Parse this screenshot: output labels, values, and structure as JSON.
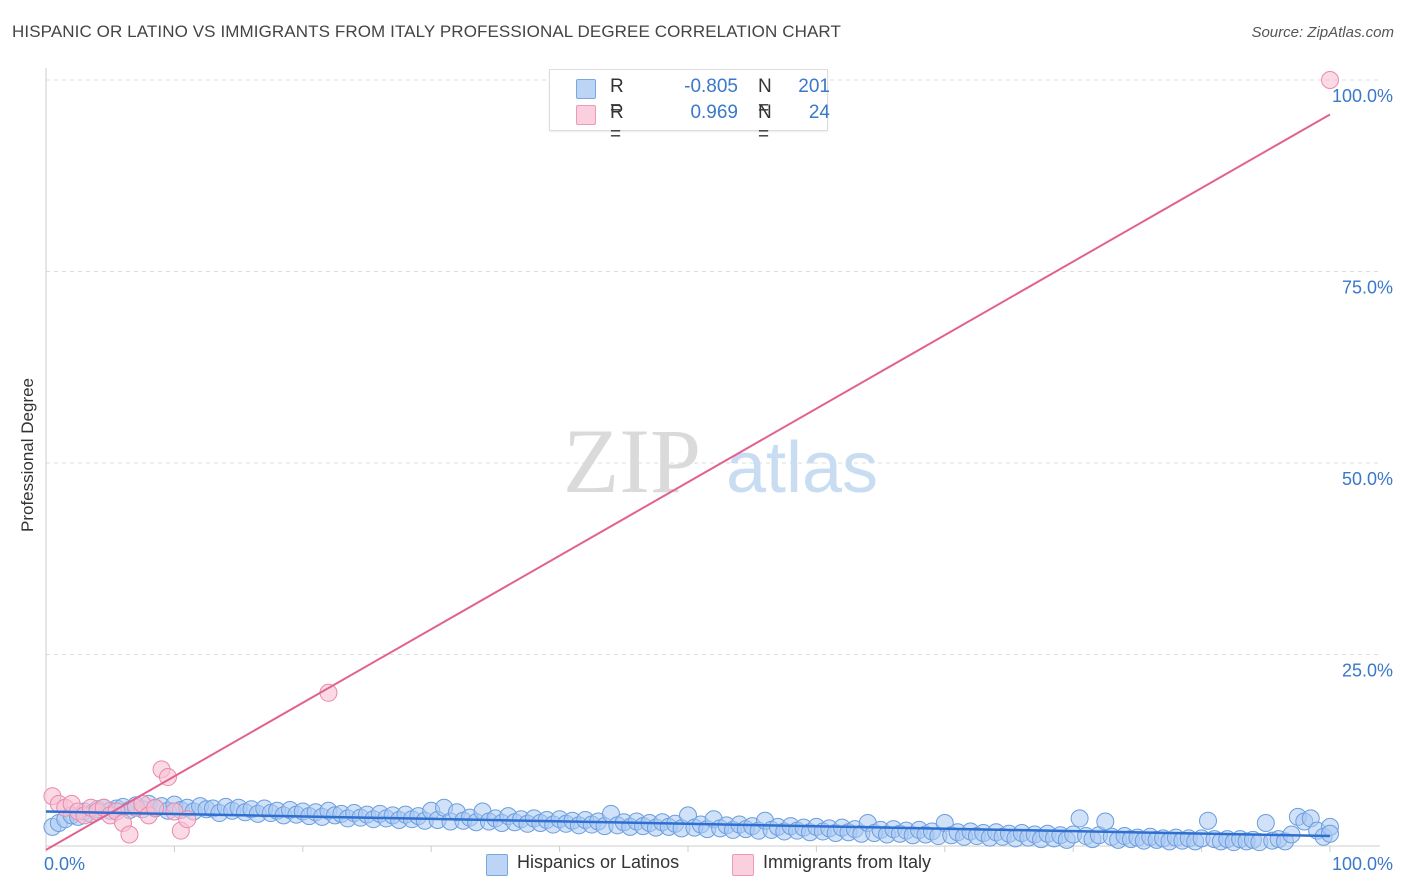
{
  "header": {
    "title": "HISPANIC OR LATINO VS IMMIGRANTS FROM ITALY PROFESSIONAL DEGREE CORRELATION CHART",
    "source": "Source: ZipAtlas.com"
  },
  "watermark": {
    "zip": "ZIP",
    "atlas": "atlas"
  },
  "legend": {
    "rows": [
      {
        "r_label": "R =",
        "r_value": "-0.805",
        "n_label": "N =",
        "n_value": "201",
        "color": "#8fb8ec"
      },
      {
        "r_label": "R =",
        "r_value": "0.969",
        "n_label": "N =",
        "n_value": "24",
        "color": "#f4a6bf"
      }
    ]
  },
  "bottom_legend": [
    {
      "label": "Hispanics or Latinos",
      "color": "#8fb8ec"
    },
    {
      "label": "Immigrants from Italy",
      "color": "#f4a6bf"
    }
  ],
  "colors": {
    "blue_fill": "#a9c9f2",
    "blue_stroke": "#6a9edf",
    "blue_line": "#2f6fd0",
    "pink_fill": "#f8c2d4",
    "pink_stroke": "#ea8aab",
    "pink_line": "#e2628f",
    "axis_text": "#3a78c9",
    "grid": "#dddddd"
  },
  "chart_data": {
    "type": "scatter",
    "title": "HISPANIC OR LATINO VS IMMIGRANTS FROM ITALY PROFESSIONAL DEGREE CORRELATION CHART",
    "xlabel": "",
    "ylabel": "Professional Degree",
    "xlim": [
      0,
      100
    ],
    "ylim": [
      0,
      100
    ],
    "x_tick_labels": [
      "0.0%",
      "100.0%"
    ],
    "y_ticks": [
      {
        "value": 25,
        "label": "25.0%"
      },
      {
        "value": 50,
        "label": "50.0%"
      },
      {
        "value": 75,
        "label": "75.0%"
      },
      {
        "value": 100,
        "label": "100.0%"
      }
    ],
    "grid": true,
    "legend_position": "top-center",
    "series": [
      {
        "name": "Hispanics or Latinos",
        "r": -0.805,
        "n": 201,
        "trend": {
          "x": [
            0,
            100
          ],
          "y": [
            4.5,
            1.3
          ]
        },
        "points": [
          [
            0.5,
            2.5
          ],
          [
            1,
            3.0
          ],
          [
            1.5,
            3.5
          ],
          [
            2,
            4.0
          ],
          [
            2.5,
            3.8
          ],
          [
            3,
            4.5
          ],
          [
            3.5,
            4.2
          ],
          [
            4,
            4.8
          ],
          [
            4.5,
            5.0
          ],
          [
            5,
            4.6
          ],
          [
            5.5,
            4.9
          ],
          [
            6,
            5.1
          ],
          [
            6.5,
            4.7
          ],
          [
            7,
            5.3
          ],
          [
            7.5,
            4.8
          ],
          [
            8,
            5.5
          ],
          [
            8.5,
            4.9
          ],
          [
            9,
            5.2
          ],
          [
            9.5,
            4.6
          ],
          [
            10,
            5.4
          ],
          [
            10.5,
            4.7
          ],
          [
            11,
            5.0
          ],
          [
            11.5,
            4.5
          ],
          [
            12,
            5.2
          ],
          [
            12.5,
            4.8
          ],
          [
            13,
            4.9
          ],
          [
            13.5,
            4.3
          ],
          [
            14,
            5.1
          ],
          [
            14.5,
            4.6
          ],
          [
            15,
            5.0
          ],
          [
            15.5,
            4.4
          ],
          [
            16,
            4.8
          ],
          [
            16.5,
            4.2
          ],
          [
            17,
            4.9
          ],
          [
            17.5,
            4.3
          ],
          [
            18,
            4.6
          ],
          [
            18.5,
            4.0
          ],
          [
            19,
            4.7
          ],
          [
            19.5,
            4.1
          ],
          [
            20,
            4.5
          ],
          [
            20.5,
            3.9
          ],
          [
            21,
            4.4
          ],
          [
            21.5,
            3.8
          ],
          [
            22,
            4.6
          ],
          [
            22.5,
            4.0
          ],
          [
            23,
            4.2
          ],
          [
            23.5,
            3.6
          ],
          [
            24,
            4.3
          ],
          [
            24.5,
            3.7
          ],
          [
            25,
            4.1
          ],
          [
            25.5,
            3.5
          ],
          [
            26,
            4.2
          ],
          [
            26.5,
            3.6
          ],
          [
            27,
            4.0
          ],
          [
            27.5,
            3.4
          ],
          [
            28,
            4.1
          ],
          [
            28.5,
            3.5
          ],
          [
            29,
            3.9
          ],
          [
            29.5,
            3.3
          ],
          [
            30,
            4.6
          ],
          [
            30.5,
            3.4
          ],
          [
            31,
            5.0
          ],
          [
            31.5,
            3.2
          ],
          [
            32,
            4.4
          ],
          [
            32.5,
            3.3
          ],
          [
            33,
            3.7
          ],
          [
            33.5,
            3.1
          ],
          [
            34,
            4.5
          ],
          [
            34.5,
            3.2
          ],
          [
            35,
            3.6
          ],
          [
            35.5,
            3.0
          ],
          [
            36,
            3.9
          ],
          [
            36.5,
            3.1
          ],
          [
            37,
            3.5
          ],
          [
            37.5,
            2.9
          ],
          [
            38,
            3.6
          ],
          [
            38.5,
            3.0
          ],
          [
            39,
            3.4
          ],
          [
            39.5,
            2.8
          ],
          [
            40,
            3.5
          ],
          [
            40.5,
            2.9
          ],
          [
            41,
            3.3
          ],
          [
            41.5,
            2.7
          ],
          [
            42,
            3.4
          ],
          [
            42.5,
            2.8
          ],
          [
            43,
            3.2
          ],
          [
            43.5,
            2.6
          ],
          [
            44,
            4.2
          ],
          [
            44.5,
            2.7
          ],
          [
            45,
            3.1
          ],
          [
            45.5,
            2.5
          ],
          [
            46,
            3.2
          ],
          [
            46.5,
            2.6
          ],
          [
            47,
            3.0
          ],
          [
            47.5,
            2.4
          ],
          [
            48,
            3.1
          ],
          [
            48.5,
            2.5
          ],
          [
            49,
            2.9
          ],
          [
            49.5,
            2.3
          ],
          [
            50,
            4.0
          ],
          [
            50.5,
            2.4
          ],
          [
            51,
            2.8
          ],
          [
            51.5,
            2.2
          ],
          [
            52,
            3.5
          ],
          [
            52.5,
            2.3
          ],
          [
            53,
            2.7
          ],
          [
            53.5,
            2.1
          ],
          [
            54,
            2.8
          ],
          [
            54.5,
            2.2
          ],
          [
            55,
            2.6
          ],
          [
            55.5,
            2.0
          ],
          [
            56,
            3.3
          ],
          [
            56.5,
            2.1
          ],
          [
            57,
            2.5
          ],
          [
            57.5,
            1.9
          ],
          [
            58,
            2.6
          ],
          [
            58.5,
            2.0
          ],
          [
            59,
            2.4
          ],
          [
            59.5,
            1.8
          ],
          [
            60,
            2.5
          ],
          [
            60.5,
            1.9
          ],
          [
            61,
            2.3
          ],
          [
            61.5,
            1.7
          ],
          [
            62,
            2.4
          ],
          [
            62.5,
            1.8
          ],
          [
            63,
            2.2
          ],
          [
            63.5,
            1.6
          ],
          [
            64,
            3.0
          ],
          [
            64.5,
            1.7
          ],
          [
            65,
            2.1
          ],
          [
            65.5,
            1.5
          ],
          [
            66,
            2.2
          ],
          [
            66.5,
            1.6
          ],
          [
            67,
            2.0
          ],
          [
            67.5,
            1.4
          ],
          [
            68,
            2.1
          ],
          [
            68.5,
            1.5
          ],
          [
            69,
            1.9
          ],
          [
            69.5,
            1.3
          ],
          [
            70,
            3.0
          ],
          [
            70.5,
            1.4
          ],
          [
            71,
            1.8
          ],
          [
            71.5,
            1.2
          ],
          [
            72,
            1.9
          ],
          [
            72.5,
            1.3
          ],
          [
            73,
            1.7
          ],
          [
            73.5,
            1.1
          ],
          [
            74,
            1.8
          ],
          [
            74.5,
            1.2
          ],
          [
            75,
            1.6
          ],
          [
            75.5,
            1.0
          ],
          [
            76,
            1.7
          ],
          [
            76.5,
            1.1
          ],
          [
            77,
            1.5
          ],
          [
            77.5,
            0.9
          ],
          [
            78,
            1.6
          ],
          [
            78.5,
            1.0
          ],
          [
            79,
            1.4
          ],
          [
            79.5,
            0.8
          ],
          [
            80,
            1.5
          ],
          [
            80.5,
            3.6
          ],
          [
            81,
            1.3
          ],
          [
            81.5,
            0.9
          ],
          [
            82,
            1.4
          ],
          [
            82.5,
            3.2
          ],
          [
            83,
            1.2
          ],
          [
            83.5,
            0.8
          ],
          [
            84,
            1.3
          ],
          [
            84.5,
            0.9
          ],
          [
            85,
            1.1
          ],
          [
            85.5,
            0.7
          ],
          [
            86,
            1.2
          ],
          [
            86.5,
            0.8
          ],
          [
            87,
            1.0
          ],
          [
            87.5,
            0.6
          ],
          [
            88,
            1.1
          ],
          [
            88.5,
            0.7
          ],
          [
            89,
            1.0
          ],
          [
            89.5,
            0.6
          ],
          [
            90,
            1.0
          ],
          [
            90.5,
            3.3
          ],
          [
            91,
            0.9
          ],
          [
            91.5,
            0.6
          ],
          [
            92,
            0.9
          ],
          [
            92.5,
            0.5
          ],
          [
            93,
            0.9
          ],
          [
            93.5,
            0.6
          ],
          [
            94,
            0.8
          ],
          [
            94.5,
            0.5
          ],
          [
            95,
            3.0
          ],
          [
            95.5,
            0.7
          ],
          [
            96,
            0.9
          ],
          [
            96.5,
            0.6
          ],
          [
            97,
            1.5
          ],
          [
            97.5,
            3.8
          ],
          [
            98,
            3.2
          ],
          [
            98.5,
            3.6
          ],
          [
            99,
            2.0
          ],
          [
            99.5,
            1.2
          ],
          [
            100,
            2.5
          ],
          [
            100,
            1.6
          ]
        ]
      },
      {
        "name": "Immigrants from Italy",
        "r": 0.969,
        "n": 24,
        "trend": {
          "x": [
            0,
            100
          ],
          "y": [
            -0.5,
            95.5
          ]
        },
        "points": [
          [
            0.5,
            6.5
          ],
          [
            1,
            5.5
          ],
          [
            1.5,
            5.0
          ],
          [
            2,
            5.5
          ],
          [
            2.5,
            4.5
          ],
          [
            3,
            4.0
          ],
          [
            3.5,
            5.0
          ],
          [
            4,
            4.5
          ],
          [
            4.5,
            5.0
          ],
          [
            5,
            4.0
          ],
          [
            5.5,
            4.5
          ],
          [
            6,
            3.0
          ],
          [
            6.5,
            1.5
          ],
          [
            7,
            5.0
          ],
          [
            7.5,
            5.5
          ],
          [
            8,
            4.0
          ],
          [
            8.5,
            5.0
          ],
          [
            9,
            10.0
          ],
          [
            9.5,
            9.0
          ],
          [
            10,
            4.5
          ],
          [
            10.5,
            2.0
          ],
          [
            11,
            3.5
          ],
          [
            22,
            20.0
          ],
          [
            100,
            100.0
          ]
        ]
      }
    ]
  }
}
